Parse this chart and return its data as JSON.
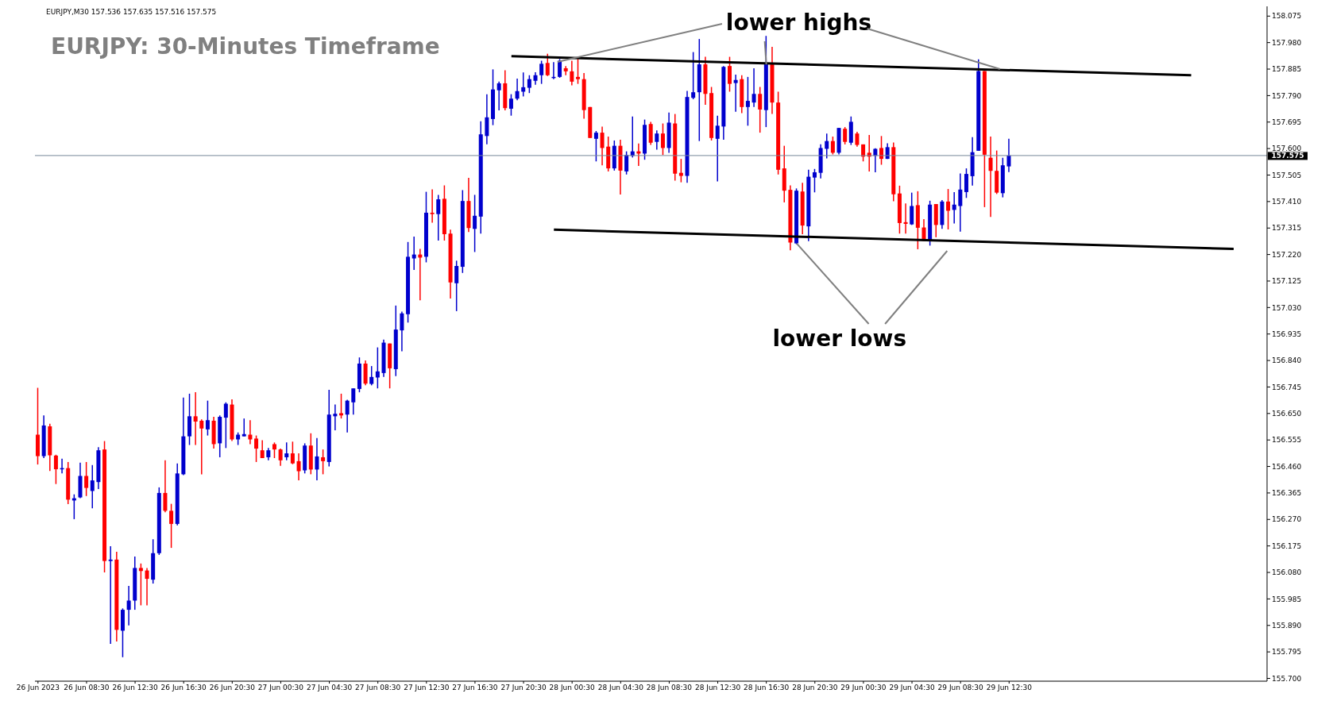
{
  "chart_data": {
    "type": "candlestick",
    "title": "EURJPY: 30-Minutes Timeframe",
    "annotations": [
      "EURJPY,M30  157.536 157.635 157.516 157.575",
      {
        "text": "lower highs",
        "x": "2023-06-28T16:30",
        "y": 157.902
      },
      {
        "text": "lower lows",
        "x": "2023-06-28T19:00",
        "y": 157.26
      }
    ],
    "colors": [
      "#ff0000",
      "#0000cd",
      "#ff0000",
      "#ff0000",
      "#0000cd",
      "#ff0000",
      "#0000cd",
      "#0000cd",
      "#ff0000",
      "#0000cd",
      "#0000cd",
      "#ff0000",
      "#0000cd",
      "#ff0000",
      "#0000cd",
      "#0000cd",
      "#0000cd",
      "#ff0000",
      "#ff0000",
      "#0000cd",
      "#0000cd",
      "#ff0000",
      "#ff0000",
      "#0000cd",
      "#0000cd",
      "#0000cd",
      "#ff0000",
      "#ff0000",
      "#0000cd",
      "#ff0000",
      "#0000cd",
      "#0000cd",
      "#ff0000",
      "#0000cd",
      "#0000cd",
      "#ff0000",
      "#ff0000",
      "#ff0000",
      "#0000cd",
      "#ff0000",
      "#ff0000",
      "#0000cd",
      "#ff0000",
      "#ff0000",
      "#0000cd",
      "#ff0000",
      "#0000cd",
      "#ff0000",
      "#0000cd",
      "#0000cd",
      "#ff0000",
      "#0000cd",
      "#0000cd",
      "#0000cd",
      "#ff0000",
      "#0000cd",
      "#0000cd",
      "#0000cd",
      "#ff0000",
      "#0000cd",
      "#0000cd",
      "#0000cd",
      "#0000cd",
      "#ff0000",
      "#0000cd",
      "#ff0000",
      "#0000cd",
      "#ff0000",
      "#ff0000",
      "#0000cd",
      "#0000cd",
      "#ff0000",
      "#0000cd",
      "#0000cd",
      "#0000cd",
      "#0000cd",
      "#0000cd",
      "#ff0000",
      "#0000cd",
      "#0000cd",
      "#0000cd",
      "#0000cd",
      "#0000cd",
      "#0000cd",
      "#ff0000",
      "#0000cd",
      "#0000cd",
      "#ff0000",
      "#ff0000",
      "#ff0000",
      "#ff0000",
      "#ff0000",
      "#0000cd",
      "#ff0000",
      "#ff0000",
      "#0000cd",
      "#ff0000",
      "#0000cd",
      "#0000cd",
      "#ff0000",
      "#0000cd",
      "#ff0000",
      "#0000cd",
      "#ff0000",
      "#0000cd",
      "#ff0000",
      "#ff0000",
      "#0000cd",
      "#0000cd",
      "#0000cd",
      "#ff0000",
      "#ff0000",
      "#0000cd",
      "#0000cd",
      "#ff0000",
      "#0000cd",
      "#ff0000",
      "#0000cd",
      "#0000cd",
      "#ff0000",
      "#0000cd",
      "#ff0000",
      "#ff0000",
      "#ff0000",
      "#ff0000",
      "#0000cd",
      "#ff0000",
      "#0000cd",
      "#0000cd",
      "#0000cd",
      "#0000cd",
      "#ff0000",
      "#0000cd",
      "#ff0000",
      "#0000cd",
      "#ff0000",
      "#ff0000",
      "#ff0000",
      "#0000cd",
      "#ff0000",
      "#0000cd",
      "#ff0000",
      "#ff0000",
      "#ff0000",
      "#0000cd",
      "#ff0000",
      "#ff0000",
      "#0000cd",
      "#ff0000",
      "#0000cd",
      "#ff0000",
      "#0000cd",
      "#0000cd",
      "#0000cd",
      "#0000cd",
      "#0000cd",
      "#ff0000",
      "#ff0000",
      "#ff0000",
      "#0000cd",
      "#0000cd"
    ],
    "x": [
      "2023-06-26T04:30",
      "2023-06-26T05:00",
      "2023-06-26T05:30",
      "2023-06-26T06:00",
      "2023-06-26T06:30",
      "2023-06-26T07:00",
      "2023-06-26T07:30",
      "2023-06-26T08:00",
      "2023-06-26T08:30",
      "2023-06-26T09:00",
      "2023-06-26T09:30",
      "2023-06-26T10:00",
      "2023-06-26T10:30",
      "2023-06-26T11:00",
      "2023-06-26T11:30",
      "2023-06-26T12:00",
      "2023-06-26T12:30",
      "2023-06-26T13:00",
      "2023-06-26T13:30",
      "2023-06-26T14:00",
      "2023-06-26T14:30",
      "2023-06-26T15:00",
      "2023-06-26T15:30",
      "2023-06-26T16:00",
      "2023-06-26T16:30",
      "2023-06-26T17:00",
      "2023-06-26T17:30",
      "2023-06-26T18:00",
      "2023-06-26T18:30",
      "2023-06-26T19:00",
      "2023-06-26T19:30",
      "2023-06-26T20:00",
      "2023-06-26T20:30",
      "2023-06-26T21:00",
      "2023-06-26T21:30",
      "2023-06-26T22:00",
      "2023-06-26T22:30",
      "2023-06-26T23:00",
      "2023-06-26T23:30",
      "2023-06-27T00:00",
      "2023-06-27T00:30",
      "2023-06-27T01:00",
      "2023-06-27T01:30",
      "2023-06-27T02:00",
      "2023-06-27T02:30",
      "2023-06-27T03:00",
      "2023-06-27T03:30",
      "2023-06-27T04:00",
      "2023-06-27T04:30",
      "2023-06-27T05:00",
      "2023-06-27T05:30",
      "2023-06-27T06:00",
      "2023-06-27T06:30",
      "2023-06-27T07:00",
      "2023-06-27T07:30",
      "2023-06-27T08:00",
      "2023-06-27T08:30",
      "2023-06-27T09:00",
      "2023-06-27T09:30",
      "2023-06-27T10:00",
      "2023-06-27T10:30",
      "2023-06-27T11:00",
      "2023-06-27T11:30",
      "2023-06-27T12:00",
      "2023-06-27T12:30",
      "2023-06-27T13:00",
      "2023-06-27T13:30",
      "2023-06-27T14:00",
      "2023-06-27T14:30",
      "2023-06-27T15:00",
      "2023-06-27T15:30",
      "2023-06-27T16:00",
      "2023-06-27T16:30",
      "2023-06-27T17:00",
      "2023-06-27T17:30",
      "2023-06-27T18:00",
      "2023-06-27T18:30",
      "2023-06-27T19:00",
      "2023-06-27T19:30",
      "2023-06-27T20:00",
      "2023-06-27T20:30",
      "2023-06-27T21:00",
      "2023-06-27T21:30",
      "2023-06-27T22:00",
      "2023-06-27T22:30",
      "2023-06-27T23:00",
      "2023-06-27T23:30",
      "2023-06-28T00:00",
      "2023-06-28T00:30",
      "2023-06-28T01:00",
      "2023-06-28T01:30",
      "2023-06-28T02:00",
      "2023-06-28T02:30",
      "2023-06-28T03:00",
      "2023-06-28T03:30",
      "2023-06-28T04:00",
      "2023-06-28T04:30",
      "2023-06-28T05:00",
      "2023-06-28T05:30",
      "2023-06-28T06:00",
      "2023-06-28T06:30",
      "2023-06-28T07:00",
      "2023-06-28T07:30",
      "2023-06-28T08:00",
      "2023-06-28T08:30",
      "2023-06-28T09:00",
      "2023-06-28T09:30",
      "2023-06-28T10:00",
      "2023-06-28T10:30",
      "2023-06-28T11:00",
      "2023-06-28T11:30",
      "2023-06-28T12:00",
      "2023-06-28T12:30",
      "2023-06-28T13:00",
      "2023-06-28T13:30",
      "2023-06-28T14:00",
      "2023-06-28T14:30",
      "2023-06-28T15:00",
      "2023-06-28T15:30",
      "2023-06-28T16:00",
      "2023-06-28T16:30",
      "2023-06-28T17:00",
      "2023-06-28T17:30",
      "2023-06-28T18:00",
      "2023-06-28T18:30",
      "2023-06-28T19:00",
      "2023-06-28T19:30",
      "2023-06-28T20:00",
      "2023-06-28T20:30",
      "2023-06-28T21:00",
      "2023-06-28T21:30",
      "2023-06-28T22:00",
      "2023-06-28T22:30",
      "2023-06-28T23:00",
      "2023-06-28T23:30",
      "2023-06-29T00:00",
      "2023-06-29T00:30",
      "2023-06-29T01:00",
      "2023-06-29T01:30",
      "2023-06-29T02:00",
      "2023-06-29T02:30",
      "2023-06-29T03:00",
      "2023-06-29T03:30",
      "2023-06-29T04:00",
      "2023-06-29T04:30",
      "2023-06-29T05:00",
      "2023-06-29T05:30",
      "2023-06-29T06:00",
      "2023-06-29T06:30",
      "2023-06-29T07:00",
      "2023-06-29T07:30",
      "2023-06-29T08:00",
      "2023-06-29T08:30",
      "2023-06-29T09:00",
      "2023-06-29T09:30",
      "2023-06-29T10:00",
      "2023-06-29T10:30",
      "2023-06-29T11:00",
      "2023-06-29T11:30",
      "2023-06-29T12:00",
      "2023-06-29T12:30"
    ],
    "ohlc": [
      [
        156.574,
        156.742,
        156.467,
        156.497
      ],
      [
        156.497,
        156.643,
        156.49,
        156.607
      ],
      [
        156.604,
        156.613,
        156.444,
        156.5
      ],
      [
        156.499,
        156.502,
        156.397,
        156.45
      ],
      [
        156.45,
        156.488,
        156.435,
        156.454
      ],
      [
        156.454,
        156.476,
        156.325,
        156.341
      ],
      [
        156.338,
        156.36,
        156.271,
        156.346
      ],
      [
        156.349,
        156.474,
        156.346,
        156.426
      ],
      [
        156.426,
        156.476,
        156.354,
        156.383
      ],
      [
        156.372,
        156.465,
        156.31,
        156.41
      ],
      [
        156.404,
        156.529,
        156.379,
        156.518
      ],
      [
        156.521,
        156.551,
        156.08,
        156.121
      ],
      [
        156.121,
        156.174,
        155.824,
        156.126
      ],
      [
        156.126,
        156.154,
        155.832,
        155.874
      ],
      [
        155.871,
        155.951,
        155.776,
        155.946
      ],
      [
        155.946,
        156.032,
        155.89,
        155.979
      ],
      [
        155.979,
        156.137,
        155.946,
        156.096
      ],
      [
        156.096,
        156.112,
        155.962,
        156.085
      ],
      [
        156.087,
        156.096,
        155.962,
        156.057
      ],
      [
        156.054,
        156.199,
        156.04,
        156.149
      ],
      [
        156.149,
        156.385,
        156.143,
        156.365
      ],
      [
        156.365,
        156.482,
        156.296,
        156.301
      ],
      [
        156.301,
        156.326,
        156.168,
        156.254
      ],
      [
        156.254,
        156.471,
        156.249,
        156.435
      ],
      [
        156.432,
        156.707,
        156.429,
        156.568
      ],
      [
        156.568,
        156.721,
        156.537,
        156.64
      ],
      [
        156.64,
        156.726,
        156.537,
        156.621
      ],
      [
        156.624,
        156.629,
        156.432,
        156.596
      ],
      [
        156.593,
        156.696,
        156.571,
        156.626
      ],
      [
        156.624,
        156.638,
        156.524,
        156.54
      ],
      [
        156.543,
        156.643,
        156.493,
        156.638
      ],
      [
        156.635,
        156.69,
        156.526,
        156.685
      ],
      [
        156.682,
        156.701,
        156.551,
        156.557
      ],
      [
        156.557,
        156.582,
        156.537,
        156.574
      ],
      [
        156.568,
        156.632,
        156.568,
        156.576
      ],
      [
        156.574,
        156.626,
        156.54,
        156.557
      ],
      [
        156.56,
        156.571,
        156.476,
        156.524
      ],
      [
        156.518,
        156.554,
        156.49,
        156.49
      ],
      [
        156.493,
        156.526,
        156.482,
        156.518
      ],
      [
        156.54,
        156.546,
        156.49,
        156.521
      ],
      [
        156.521,
        156.524,
        156.462,
        156.482
      ],
      [
        156.493,
        156.546,
        156.482,
        156.507
      ],
      [
        156.507,
        156.549,
        156.468,
        156.471
      ],
      [
        156.479,
        156.507,
        156.41,
        156.443
      ],
      [
        156.446,
        156.543,
        156.435,
        156.535
      ],
      [
        156.535,
        156.579,
        156.432,
        156.449
      ],
      [
        156.449,
        156.562,
        156.41,
        156.496
      ],
      [
        156.493,
        156.521,
        156.432,
        156.479
      ],
      [
        156.476,
        156.735,
        156.46,
        156.646
      ],
      [
        156.64,
        156.682,
        156.59,
        156.649
      ],
      [
        156.651,
        156.721,
        156.632,
        156.643
      ],
      [
        156.646,
        156.699,
        156.582,
        156.696
      ],
      [
        156.69,
        156.74,
        156.646,
        156.74
      ],
      [
        156.738,
        156.851,
        156.726,
        156.829
      ],
      [
        156.829,
        156.84,
        156.751,
        156.757
      ],
      [
        156.756,
        156.82,
        156.751,
        156.781
      ],
      [
        156.779,
        156.887,
        156.74,
        156.801
      ],
      [
        156.795,
        156.915,
        156.781,
        156.904
      ],
      [
        156.901,
        156.901,
        156.74,
        156.812
      ],
      [
        156.809,
        157.037,
        156.784,
        156.951
      ],
      [
        156.948,
        157.015,
        156.873,
        157.009
      ],
      [
        157.006,
        157.265,
        156.976,
        157.212
      ],
      [
        157.206,
        157.284,
        157.165,
        157.22
      ],
      [
        157.22,
        157.24,
        157.056,
        157.209
      ],
      [
        157.212,
        157.445,
        157.192,
        157.37
      ],
      [
        157.37,
        157.454,
        157.334,
        157.365
      ],
      [
        157.365,
        157.434,
        157.27,
        157.418
      ],
      [
        157.42,
        157.468,
        157.27,
        157.293
      ],
      [
        157.295,
        157.309,
        157.062,
        157.12
      ],
      [
        157.117,
        157.198,
        157.017,
        157.179
      ],
      [
        157.176,
        157.451,
        157.154,
        157.412
      ],
      [
        157.412,
        157.495,
        157.301,
        157.315
      ],
      [
        157.312,
        157.434,
        157.229,
        157.359
      ],
      [
        157.356,
        157.698,
        157.295,
        157.651
      ],
      [
        157.645,
        157.795,
        157.615,
        157.712
      ],
      [
        157.706,
        157.884,
        157.684,
        157.812
      ],
      [
        157.809,
        157.84,
        157.737,
        157.834
      ],
      [
        157.834,
        157.881,
        157.737,
        157.745
      ],
      [
        157.743,
        157.795,
        157.718,
        157.779
      ],
      [
        157.779,
        157.851,
        157.773,
        157.806
      ],
      [
        157.804,
        157.873,
        157.787,
        157.82
      ],
      [
        157.818,
        157.863,
        157.799,
        157.849
      ],
      [
        157.843,
        157.874,
        157.829,
        157.863
      ],
      [
        157.863,
        157.915,
        157.832,
        157.904
      ],
      [
        157.907,
        157.94,
        157.86,
        157.863
      ],
      [
        157.854,
        157.91,
        157.849,
        157.857
      ],
      [
        157.857,
        157.921,
        157.854,
        157.915
      ],
      [
        157.888,
        157.896,
        157.863,
        157.877
      ],
      [
        157.877,
        157.915,
        157.827,
        157.84
      ],
      [
        157.857,
        157.921,
        157.832,
        157.849
      ],
      [
        157.849,
        157.871,
        157.707,
        157.738
      ],
      [
        157.749,
        157.749,
        157.638,
        157.638
      ],
      [
        157.635,
        157.663,
        157.554,
        157.657
      ],
      [
        157.657,
        157.679,
        157.54,
        157.602
      ],
      [
        157.607,
        157.643,
        157.518,
        157.529
      ],
      [
        157.529,
        157.629,
        157.521,
        157.61
      ],
      [
        157.61,
        157.632,
        157.435,
        157.521
      ],
      [
        157.518,
        157.59,
        157.507,
        157.577
      ],
      [
        157.574,
        157.715,
        157.568,
        157.59
      ],
      [
        157.59,
        157.618,
        157.538,
        157.582
      ],
      [
        157.582,
        157.704,
        157.56,
        157.685
      ],
      [
        157.688,
        157.696,
        157.613,
        157.621
      ],
      [
        157.624,
        157.665,
        157.596,
        157.654
      ],
      [
        157.654,
        157.69,
        157.577,
        157.602
      ],
      [
        157.602,
        157.729,
        157.585,
        157.693
      ],
      [
        157.69,
        157.724,
        157.485,
        157.51
      ],
      [
        157.513,
        157.563,
        157.479,
        157.502
      ],
      [
        157.502,
        157.807,
        157.477,
        157.785
      ],
      [
        157.782,
        157.946,
        157.777,
        157.802
      ],
      [
        157.802,
        157.993,
        157.627,
        157.902
      ],
      [
        157.902,
        157.929,
        157.757,
        157.796
      ],
      [
        157.799,
        157.821,
        157.629,
        157.638
      ],
      [
        157.635,
        157.718,
        157.482,
        157.682
      ],
      [
        157.679,
        157.896,
        157.632,
        157.893
      ],
      [
        157.896,
        157.929,
        157.804,
        157.832
      ],
      [
        157.835,
        157.865,
        157.732,
        157.846
      ],
      [
        157.849,
        157.863,
        157.727,
        157.749
      ],
      [
        157.749,
        157.857,
        157.682,
        157.771
      ],
      [
        157.765,
        157.888,
        157.749,
        157.796
      ],
      [
        157.796,
        157.821,
        157.657,
        157.74
      ],
      [
        157.738,
        158.004,
        157.677,
        157.902
      ],
      [
        157.902,
        157.965,
        157.724,
        157.765
      ],
      [
        157.765,
        157.804,
        157.507,
        157.524
      ],
      [
        157.529,
        157.61,
        157.407,
        157.449
      ],
      [
        157.452,
        157.468,
        157.235,
        157.263
      ],
      [
        157.26,
        157.457,
        157.257,
        157.449
      ],
      [
        157.446,
        157.477,
        157.293,
        157.324
      ],
      [
        157.321,
        157.524,
        157.268,
        157.499
      ],
      [
        157.496,
        157.527,
        157.443,
        157.515
      ],
      [
        157.513,
        157.615,
        157.493,
        157.602
      ],
      [
        157.599,
        157.654,
        157.565,
        157.627
      ],
      [
        157.627,
        157.643,
        157.579,
        157.585
      ],
      [
        157.585,
        157.674,
        157.579,
        157.674
      ],
      [
        157.671,
        157.677,
        157.615,
        157.624
      ],
      [
        157.621,
        157.715,
        157.613,
        157.696
      ],
      [
        157.654,
        157.66,
        157.607,
        157.613
      ],
      [
        157.615,
        157.615,
        157.554,
        157.571
      ],
      [
        157.585,
        157.649,
        157.518,
        157.571
      ],
      [
        157.574,
        157.601,
        157.515,
        157.599
      ],
      [
        157.602,
        157.645,
        157.542,
        157.563
      ],
      [
        157.563,
        157.619,
        157.563,
        157.605
      ],
      [
        157.605,
        157.622,
        157.411,
        157.436
      ],
      [
        157.439,
        157.467,
        157.295,
        157.333
      ],
      [
        157.336,
        157.403,
        157.295,
        157.33
      ],
      [
        157.328,
        157.442,
        157.326,
        157.394
      ],
      [
        157.397,
        157.447,
        157.239,
        157.316
      ],
      [
        157.317,
        157.347,
        157.268,
        157.269
      ],
      [
        157.269,
        157.413,
        157.252,
        157.399
      ],
      [
        157.401,
        157.401,
        157.282,
        157.326
      ],
      [
        157.326,
        157.415,
        157.312,
        157.41
      ],
      [
        157.41,
        157.455,
        157.31,
        157.377
      ],
      [
        157.38,
        157.444,
        157.331,
        157.399
      ],
      [
        157.394,
        157.511,
        157.302,
        157.453
      ],
      [
        157.444,
        157.529,
        157.423,
        157.509
      ],
      [
        157.501,
        157.641,
        157.467,
        157.587
      ],
      [
        157.592,
        157.92,
        157.592,
        157.878
      ],
      [
        157.878,
        157.878,
        157.39,
        157.578
      ],
      [
        157.567,
        157.643,
        157.355,
        157.52
      ],
      [
        157.52,
        157.593,
        157.437,
        157.442
      ],
      [
        157.44,
        157.567,
        157.425,
        157.54
      ],
      [
        157.536,
        157.635,
        157.516,
        157.575
      ]
    ],
    "series": [
      {
        "type": "line",
        "color": "#000000",
        "x": [
          "2023-06-27T19:30",
          "2023-06-30T03:30"
        ],
        "values": [
          157.931,
          157.863
        ]
      },
      {
        "type": "line",
        "color": "#000000",
        "x": [
          "2023-06-27T23:00",
          "2023-06-30T07:00"
        ],
        "values": [
          157.309,
          157.24
        ]
      }
    ],
    "ref_lines": [
      {
        "axis": "y",
        "value": 157.575,
        "label": "157.575",
        "color": "#778899"
      }
    ],
    "xlim": [
      "2023-06-26T04:15",
      "2023-06-30T09:45"
    ],
    "xticks": [
      {
        "value": "2023-06-26T04:30",
        "label": "26 Jun 2023"
      },
      {
        "value": "2023-06-26T08:30",
        "label": "26 Jun 08:30"
      },
      {
        "value": "2023-06-26T12:30",
        "label": "26 Jun 12:30"
      },
      {
        "value": "2023-06-26T16:30",
        "label": "26 Jun 16:30"
      },
      {
        "value": "2023-06-26T20:30",
        "label": "26 Jun 20:30"
      },
      {
        "value": "2023-06-27T00:30",
        "label": "27 Jun 00:30"
      },
      {
        "value": "2023-06-27T04:30",
        "label": "27 Jun 04:30"
      },
      {
        "value": "2023-06-27T08:30",
        "label": "27 Jun 08:30"
      },
      {
        "value": "2023-06-27T12:30",
        "label": "27 Jun 12:30"
      },
      {
        "value": "2023-06-27T16:30",
        "label": "27 Jun 16:30"
      },
      {
        "value": "2023-06-27T20:30",
        "label": "27 Jun 20:30"
      },
      {
        "value": "2023-06-28T00:30",
        "label": "28 Jun 00:30"
      },
      {
        "value": "2023-06-28T04:30",
        "label": "28 Jun 04:30"
      },
      {
        "value": "2023-06-28T08:30",
        "label": "28 Jun 08:30"
      },
      {
        "value": "2023-06-28T12:30",
        "label": "28 Jun 12:30"
      },
      {
        "value": "2023-06-28T16:30",
        "label": "28 Jun 16:30"
      },
      {
        "value": "2023-06-28T20:30",
        "label": "28 Jun 20:30"
      },
      {
        "value": "2023-06-29T00:30",
        "label": "29 Jun 00:30"
      },
      {
        "value": "2023-06-29T04:30",
        "label": "29 Jun 04:30"
      },
      {
        "value": "2023-06-29T08:30",
        "label": "29 Jun 08:30"
      },
      {
        "value": "2023-06-29T12:30",
        "label": "29 Jun 12:30"
      }
    ],
    "ylim": [
      155.69,
      158.11
    ],
    "yticks": [
      158.075,
      {
        "value": 157.98,
        "label": "157.980"
      },
      157.885,
      {
        "value": 157.79,
        "label": "157.790"
      },
      157.695,
      {
        "value": 157.6,
        "label": "157.600"
      },
      157.505,
      {
        "value": 157.41,
        "label": "157.410"
      },
      157.315,
      {
        "value": 157.22,
        "label": "157.220"
      },
      157.125,
      {
        "value": 157.03,
        "label": "157.030"
      },
      156.935,
      {
        "value": 156.84,
        "label": "156.840"
      },
      156.745,
      {
        "value": 156.65,
        "label": "156.650"
      },
      156.555,
      {
        "value": 156.46,
        "label": "156.460"
      },
      156.365,
      {
        "value": 156.27,
        "label": "156.270"
      },
      156.175,
      {
        "value": 156.08,
        "label": "156.080"
      },
      155.985,
      {
        "value": 155.89,
        "label": "155.890"
      },
      155.795,
      {
        "value": 155.7,
        "label": "155.700"
      }
    ],
    "grid": false,
    "legend": false
  }
}
